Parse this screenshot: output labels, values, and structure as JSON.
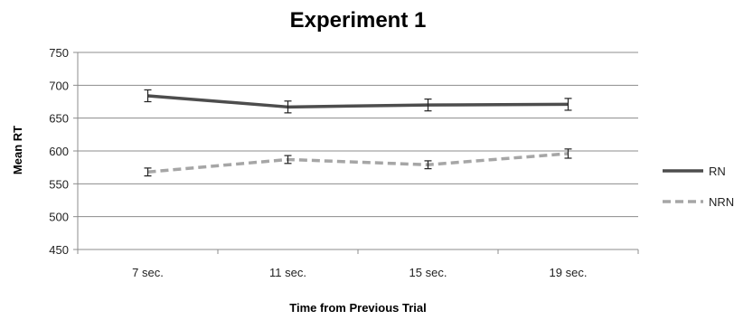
{
  "chart_data": {
    "type": "line",
    "title": "Experiment 1",
    "xlabel": "Time from Previous Trial",
    "ylabel": "Mean RT",
    "categories": [
      "7 sec.",
      "11 sec.",
      "15 sec.",
      "19 sec."
    ],
    "ylim": [
      450,
      750
    ],
    "yticks": [
      450,
      500,
      550,
      600,
      650,
      700,
      750
    ],
    "grid": true,
    "legend_position": "right",
    "series": [
      {
        "name": "RN",
        "values": [
          684,
          667,
          670,
          671
        ],
        "errors": [
          9,
          9,
          9,
          9
        ],
        "color": "#4d4d4d",
        "dash": "solid"
      },
      {
        "name": "NRN",
        "values": [
          568,
          587,
          579,
          596
        ],
        "errors": [
          6,
          6,
          6,
          7
        ],
        "color": "#a6a6a6",
        "dash": "dashed"
      }
    ]
  }
}
